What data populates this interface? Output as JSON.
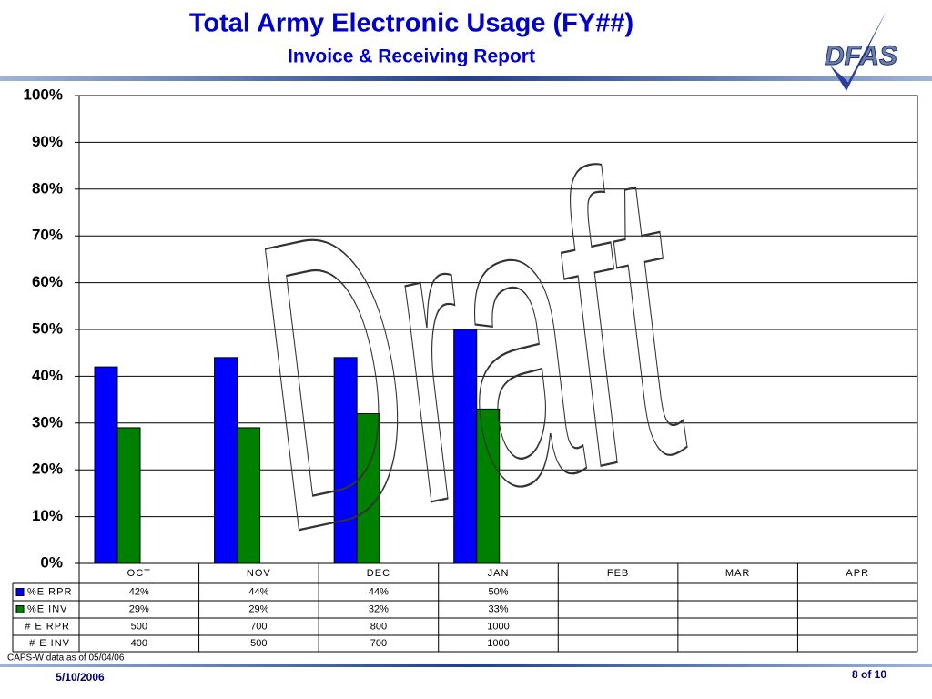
{
  "chart_data": {
    "type": "bar",
    "title": "Total Army Electronic Usage (FY##)",
    "subtitle": "Invoice & Receiving Report",
    "categories": [
      "OCT",
      "NOV",
      "DEC",
      "JAN",
      "FEB",
      "MAR",
      "APR"
    ],
    "series": [
      {
        "name": "%E RPR",
        "color": "#0000ff",
        "values": [
          42,
          44,
          44,
          50,
          null,
          null,
          null
        ],
        "value_labels": [
          "42%",
          "44%",
          "44%",
          "50%",
          null,
          null,
          null
        ]
      },
      {
        "name": "%E INV",
        "color": "#008000",
        "values": [
          29,
          29,
          32,
          33,
          null,
          null,
          null
        ],
        "value_labels": [
          "29%",
          "29%",
          "32%",
          "33%",
          null,
          null,
          null
        ]
      }
    ],
    "table_rows": [
      {
        "name": "# E RPR",
        "values": [
          500,
          700,
          800,
          1000,
          null,
          null,
          null
        ]
      },
      {
        "name": "# E INV",
        "values": [
          400,
          500,
          700,
          1000,
          null,
          null,
          null
        ]
      }
    ],
    "ylim": [
      0,
      100
    ],
    "yticks": [
      {
        "value": 0,
        "label": "0%"
      },
      {
        "value": 10,
        "label": "10%"
      },
      {
        "value": 20,
        "label": "20%"
      },
      {
        "value": 30,
        "label": "30%"
      },
      {
        "value": 40,
        "label": "40%"
      },
      {
        "value": 50,
        "label": "50%"
      },
      {
        "value": 60,
        "label": "60%"
      },
      {
        "value": 70,
        "label": "70%"
      },
      {
        "value": 80,
        "label": "80%"
      },
      {
        "value": 90,
        "label": "90%"
      },
      {
        "value": 100,
        "label": "100%"
      }
    ],
    "grid": true,
    "note": "CAPS-W data as of 05/04/06",
    "watermark": "Draft"
  },
  "logo": "DFAS",
  "footer": {
    "date": "5/10/2006",
    "page": "8 of 10"
  }
}
